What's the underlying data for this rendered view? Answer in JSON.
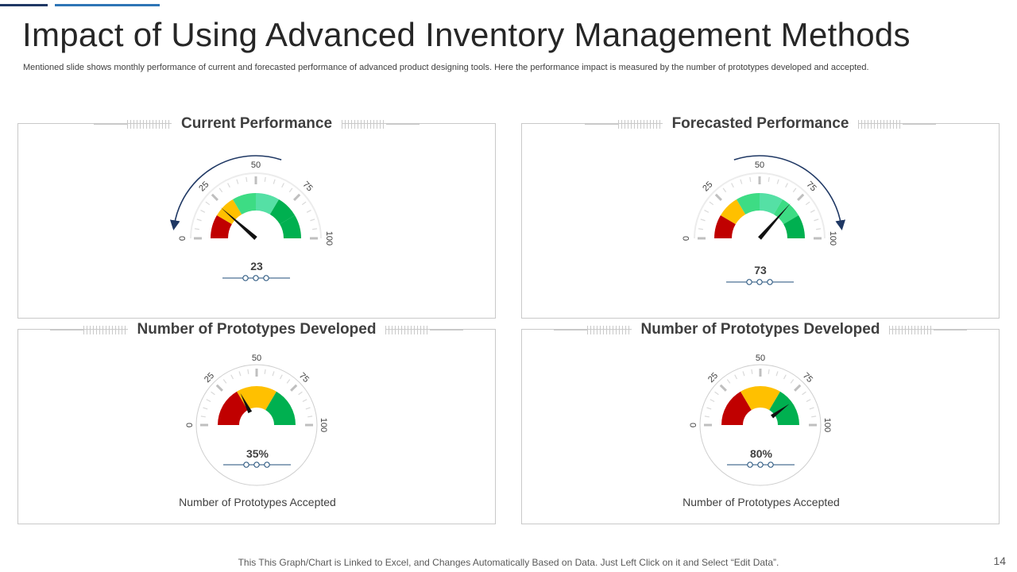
{
  "slide": {
    "title": "Impact of Using Advanced Inventory Management Methods",
    "subtitle": "Mentioned slide shows monthly performance of current and forecasted performance of advanced product designing tools. Here the performance impact is measured by the number of prototypes  developed and accepted.",
    "footer_note": "This This Graph/Chart  is Linked to Excel, and Changes  Automatically Based on Data.  Just Left Click on it and Select “Edit Data”.",
    "page_number": "14"
  },
  "colors": {
    "red": "#c00000",
    "yellow": "#ffc000",
    "green": "#00b050",
    "light_green": "#3ddc84",
    "mint": "#55e0a5",
    "needle": "#111111",
    "arrow": "#1f3864",
    "value_marker": "#1f4e79"
  },
  "chart_data": [
    {
      "type": "gauge",
      "title": "Current Performance",
      "value": 23,
      "value_label": "23",
      "caption": "",
      "range": [
        0,
        100
      ],
      "tick_labels": [
        "0",
        "25",
        "50",
        "75",
        "100"
      ],
      "bands": [
        {
          "from": 0,
          "to": 17,
          "color": "#c00000"
        },
        {
          "from": 17,
          "to": 33,
          "color": "#ffc000"
        },
        {
          "from": 33,
          "to": 50,
          "color": "#3ddc84"
        },
        {
          "from": 50,
          "to": 67,
          "color": "#55e0a5"
        },
        {
          "from": 67,
          "to": 83,
          "color": "#00b050"
        },
        {
          "from": 83,
          "to": 100,
          "color": "#00b050"
        }
      ],
      "trend_arrow": "counter-clockwise"
    },
    {
      "type": "gauge",
      "title": "Forecasted Performance",
      "value": 73,
      "value_label": "73",
      "caption": "",
      "range": [
        0,
        100
      ],
      "tick_labels": [
        "0",
        "25",
        "50",
        "75",
        "100"
      ],
      "bands": [
        {
          "from": 0,
          "to": 17,
          "color": "#c00000"
        },
        {
          "from": 17,
          "to": 33,
          "color": "#ffc000"
        },
        {
          "from": 33,
          "to": 50,
          "color": "#3ddc84"
        },
        {
          "from": 50,
          "to": 67,
          "color": "#55e0a5"
        },
        {
          "from": 67,
          "to": 83,
          "color": "#3ddc84"
        },
        {
          "from": 83,
          "to": 100,
          "color": "#00b050"
        }
      ],
      "trend_arrow": "clockwise"
    },
    {
      "type": "gauge",
      "title": "Number of Prototypes Developed",
      "value": 35,
      "value_label": "35%",
      "caption": "Number of Prototypes Accepted",
      "range": [
        0,
        100
      ],
      "tick_labels": [
        "0",
        "25",
        "50",
        "75",
        "100"
      ],
      "bands": [
        {
          "from": 0,
          "to": 33,
          "color": "#c00000"
        },
        {
          "from": 33,
          "to": 67,
          "color": "#ffc000"
        },
        {
          "from": 67,
          "to": 100,
          "color": "#00b050"
        }
      ],
      "trend_arrow": "none"
    },
    {
      "type": "gauge",
      "title": "Number of Prototypes Developed",
      "value": 80,
      "value_label": "80%",
      "caption": "Number of Prototypes Accepted",
      "range": [
        0,
        100
      ],
      "tick_labels": [
        "0",
        "25",
        "50",
        "75",
        "100"
      ],
      "bands": [
        {
          "from": 0,
          "to": 33,
          "color": "#c00000"
        },
        {
          "from": 33,
          "to": 67,
          "color": "#ffc000"
        },
        {
          "from": 67,
          "to": 100,
          "color": "#00b050"
        }
      ],
      "trend_arrow": "none"
    }
  ]
}
